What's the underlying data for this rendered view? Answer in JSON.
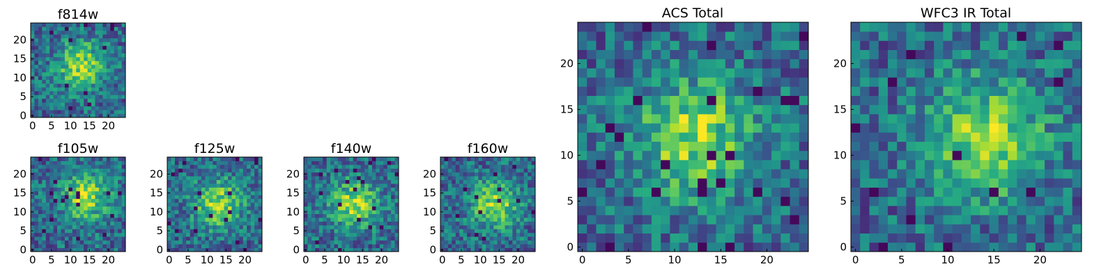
{
  "chart_data": [
    {
      "type": "heatmap",
      "title": "f814w",
      "grid_size": 25,
      "colormap": "viridis",
      "xlim": [
        0,
        24
      ],
      "ylim": [
        0,
        24
      ],
      "xticks": [
        "0",
        "5",
        "10",
        "15",
        "20"
      ],
      "yticks": [
        "0",
        "5",
        "10",
        "15",
        "20"
      ],
      "peak": [
        13,
        13
      ],
      "noise_seed": 11
    },
    {
      "type": "heatmap",
      "title": "f105w",
      "grid_size": 25,
      "colormap": "viridis",
      "xlim": [
        0,
        24
      ],
      "ylim": [
        0,
        24
      ],
      "xticks": [
        "0",
        "5",
        "10",
        "15",
        "20"
      ],
      "yticks": [
        "0",
        "5",
        "10",
        "15",
        "20"
      ],
      "peak": [
        14,
        14
      ],
      "noise_seed": 23
    },
    {
      "type": "heatmap",
      "title": "f125w",
      "grid_size": 25,
      "colormap": "viridis",
      "xlim": [
        0,
        24
      ],
      "ylim": [
        0,
        24
      ],
      "xticks": [
        "0",
        "5",
        "10",
        "15",
        "20"
      ],
      "yticks": [
        "0",
        "5",
        "10",
        "15",
        "20"
      ],
      "peak": [
        13,
        12
      ],
      "noise_seed": 37
    },
    {
      "type": "heatmap",
      "title": "f140w",
      "grid_size": 25,
      "colormap": "viridis",
      "xlim": [
        0,
        24
      ],
      "ylim": [
        0,
        24
      ],
      "xticks": [
        "0",
        "5",
        "10",
        "15",
        "20"
      ],
      "yticks": [
        "0",
        "5",
        "10",
        "15",
        "20"
      ],
      "peak": [
        13,
        12
      ],
      "noise_seed": 41
    },
    {
      "type": "heatmap",
      "title": "f160w",
      "grid_size": 25,
      "colormap": "viridis",
      "xlim": [
        0,
        24
      ],
      "ylim": [
        0,
        24
      ],
      "xticks": [
        "0",
        "5",
        "10",
        "15",
        "20"
      ],
      "yticks": [
        "0",
        "5",
        "10",
        "15",
        "20"
      ],
      "peak": [
        14,
        12
      ],
      "noise_seed": 53
    },
    {
      "type": "heatmap",
      "title": "ACS Total",
      "grid_size": 25,
      "colormap": "viridis",
      "xlim": [
        0,
        24
      ],
      "ylim": [
        0,
        24
      ],
      "xticks": [
        "0",
        "5",
        "10",
        "15",
        "20"
      ],
      "yticks": [
        "0",
        "5",
        "10",
        "15",
        "20"
      ],
      "peak": [
        12,
        12
      ],
      "noise_seed": 67
    },
    {
      "type": "heatmap",
      "title": "WFC3 IR Total",
      "grid_size": 25,
      "colormap": "viridis",
      "xlim": [
        0,
        24
      ],
      "ylim": [
        0,
        24
      ],
      "xticks": [
        "0",
        "5",
        "10",
        "15",
        "20"
      ],
      "yticks": [
        "0",
        "5",
        "10",
        "15",
        "20"
      ],
      "peak": [
        14,
        12
      ],
      "noise_seed": 79
    }
  ]
}
